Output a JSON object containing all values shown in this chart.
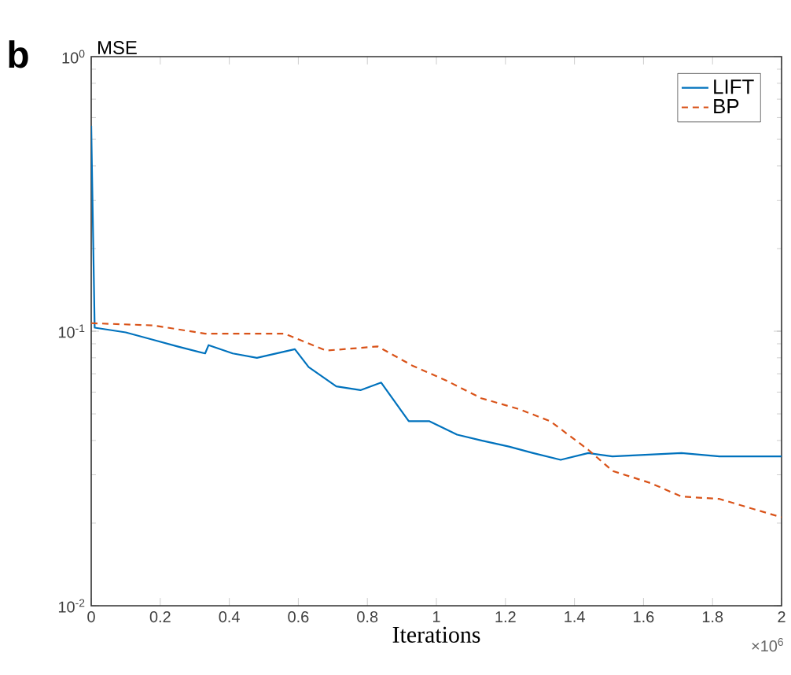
{
  "chart_data": {
    "type": "line",
    "xlabel": "Iterations",
    "ylabel": "MSE",
    "xlim": [
      0,
      2
    ],
    "ylim": [
      0.01,
      1
    ],
    "log": "y",
    "xticks": [
      0,
      0.2,
      0.4,
      0.6,
      0.8,
      1,
      1.2,
      1.4,
      1.6,
      1.8,
      2
    ],
    "yticks": [
      {
        "value": 0.01,
        "label": "10$^{-2}$"
      },
      {
        "value": 0.1,
        "label": "10$^{-1}$"
      },
      {
        "value": 1,
        "label": "10$^{0}$"
      }
    ],
    "legend": "top right",
    "grid": false,
    "marker": "none",
    "annotations": [
      "b",
      "×10$^{6}$"
    ],
    "series": [
      {
        "name": "LIFT",
        "color": "#0072bd",
        "line_style": "solid",
        "x": [
          0,
          0.01,
          0.1,
          0.18,
          0.25,
          0.33,
          0.34,
          0.41,
          0.48,
          0.59,
          0.63,
          0.71,
          0.78,
          0.84,
          0.92,
          0.98,
          1.06,
          1.13,
          1.21,
          1.28,
          1.36,
          1.44,
          1.51,
          1.71,
          1.82,
          2
        ],
        "values": [
          0.56,
          0.103,
          0.099,
          0.093,
          0.088,
          0.083,
          0.089,
          0.083,
          0.08,
          0.086,
          0.074,
          0.063,
          0.061,
          0.065,
          0.047,
          0.047,
          0.042,
          0.04,
          0.038,
          0.036,
          0.034,
          0.036,
          0.035,
          0.036,
          0.035,
          0.035
        ]
      },
      {
        "name": "BP",
        "color": "#d95319",
        "line_style": "dashed",
        "x": [
          0,
          0.18,
          0.33,
          0.56,
          0.68,
          0.83,
          0.93,
          1.03,
          1.13,
          1.24,
          1.33,
          1.44,
          1.51,
          1.62,
          1.71,
          1.82,
          2
        ],
        "values": [
          0.107,
          0.105,
          0.098,
          0.098,
          0.085,
          0.088,
          0.075,
          0.066,
          0.057,
          0.052,
          0.047,
          0.037,
          0.031,
          0.028,
          0.025,
          0.0245,
          0.021
        ]
      }
    ]
  }
}
